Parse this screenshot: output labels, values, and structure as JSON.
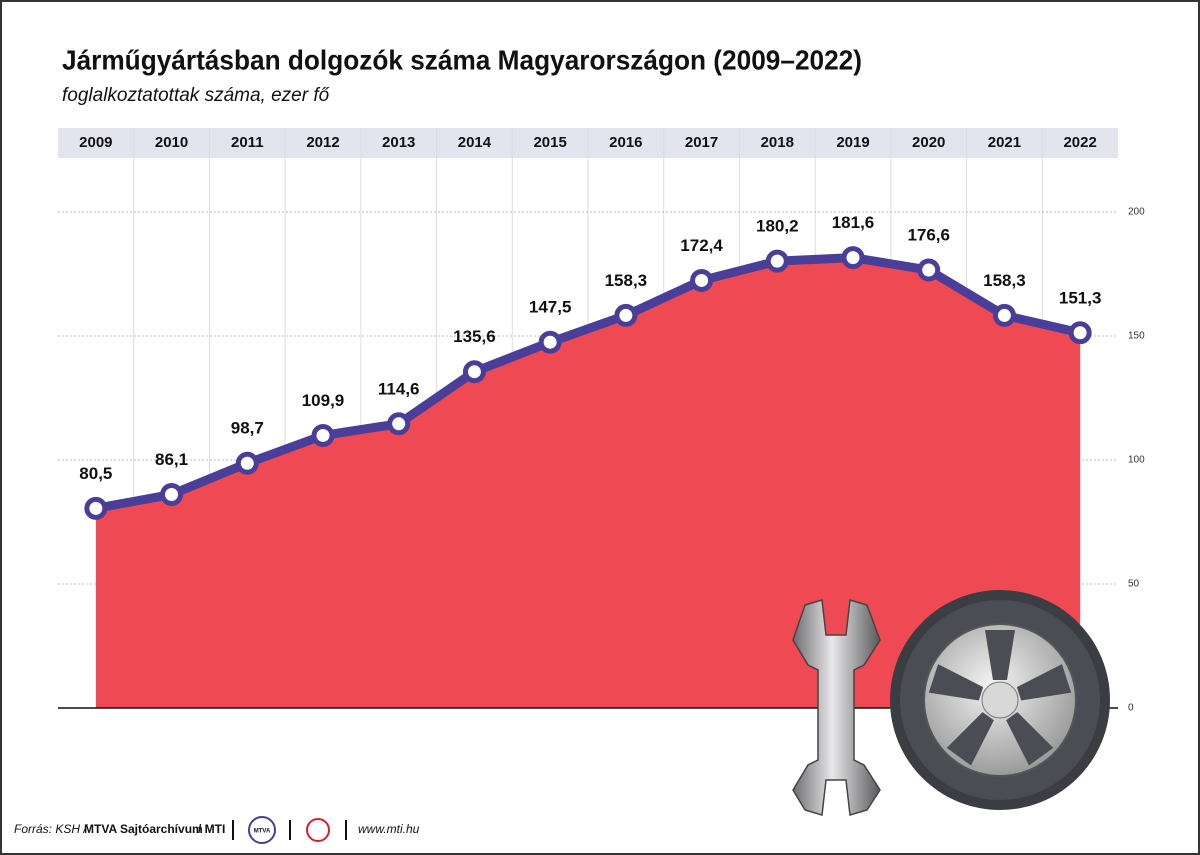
{
  "chart_data": {
    "type": "area",
    "title": "Járműgyártásban dolgozók száma Magyarországon (2009–2022)",
    "subtitle": "foglalkoztatottak száma, ezer fő",
    "categories": [
      "2009",
      "2010",
      "2011",
      "2012",
      "2013",
      "2014",
      "2015",
      "2016",
      "2017",
      "2018",
      "2019",
      "2020",
      "2021",
      "2022"
    ],
    "values": [
      80.5,
      86.1,
      98.7,
      109.9,
      114.6,
      135.6,
      147.5,
      158.3,
      172.4,
      180.2,
      181.6,
      176.6,
      158.3,
      151.3
    ],
    "value_labels": [
      "80,5",
      "86,1",
      "98,7",
      "109,9",
      "114,6",
      "135,6",
      "147,5",
      "158,3",
      "172,4",
      "180,2",
      "181,6",
      "176,6",
      "158,3",
      "151,3"
    ],
    "color": "#ef4a54",
    "line_color": "#4a3f98",
    "ylim": [
      0,
      200
    ],
    "yticks": [
      0,
      50,
      100,
      150,
      200
    ],
    "grid": true
  },
  "footer": {
    "source": "Forrás: KSH /",
    "archive": "MTVA Sajtóarchívum",
    "agency": "/ MTI",
    "logo": "MTVA",
    "website": "www.mti.hu"
  }
}
